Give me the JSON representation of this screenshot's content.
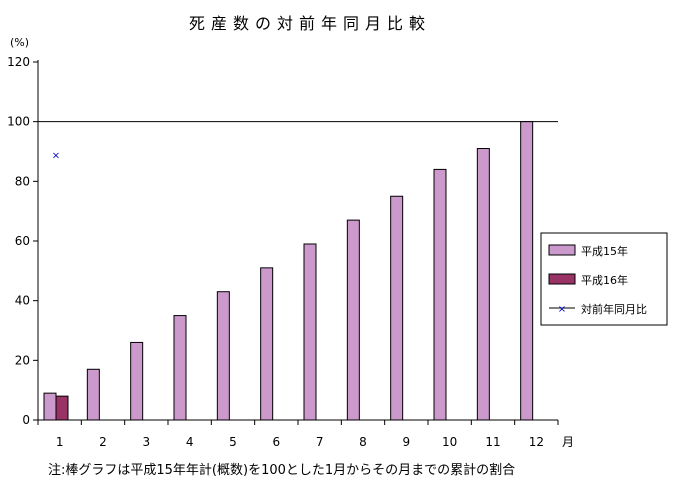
{
  "chart_data": {
    "type": "bar",
    "title": "死産数の対前年同月比較",
    "y_unit": "(%)",
    "x_unit": "月",
    "categories": [
      "1",
      "2",
      "3",
      "4",
      "5",
      "6",
      "7",
      "8",
      "9",
      "10",
      "11",
      "12"
    ],
    "series": [
      {
        "name": "平成15年",
        "color": "#cc99cc",
        "values": [
          9,
          17,
          26,
          35,
          43,
          51,
          59,
          67,
          75,
          84,
          91,
          100
        ]
      },
      {
        "name": "平成16年",
        "color": "#993366",
        "values": [
          8,
          null,
          null,
          null,
          null,
          null,
          null,
          null,
          null,
          null,
          null,
          null
        ]
      }
    ],
    "line_series": {
      "name": "対前年同月比",
      "marker": "×",
      "color": "#0000cc",
      "values": [
        89,
        null,
        null,
        null,
        null,
        null,
        null,
        null,
        null,
        null,
        null,
        null
      ]
    },
    "ylim": [
      0,
      120
    ],
    "yticks": [
      0,
      20,
      40,
      60,
      80,
      100,
      120
    ],
    "reference_line": 100,
    "legend_position": "right",
    "grid": false
  },
  "footnote": "注:棒グラフは平成15年年計(概数)を100とした1月からその月までの累計の割合"
}
